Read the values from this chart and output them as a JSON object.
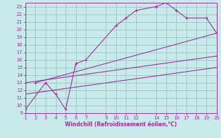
{
  "xlabel": "Windchill (Refroidissement éolien,°C)",
  "bg_color": "#c8eaea",
  "grid_color": "#a0c8c8",
  "line_color": "#993399",
  "xlim": [
    1,
    20
  ],
  "ylim": [
    9,
    23.5
  ],
  "xticks": [
    1,
    2,
    3,
    4,
    5,
    6,
    7,
    9,
    10,
    11,
    12,
    14,
    15,
    16,
    17,
    18,
    19,
    20
  ],
  "yticks": [
    9,
    10,
    11,
    12,
    13,
    14,
    15,
    16,
    17,
    18,
    19,
    20,
    21,
    22,
    23
  ],
  "curve1_x": [
    1,
    3,
    4,
    5,
    6,
    7,
    10,
    11,
    12,
    14,
    15,
    16,
    17,
    19,
    20
  ],
  "curve1_y": [
    9.5,
    13.0,
    11.5,
    9.5,
    15.5,
    16.0,
    20.5,
    21.5,
    22.5,
    23.0,
    23.5,
    22.5,
    21.5,
    21.5,
    19.5
  ],
  "line2_x": [
    2,
    20
  ],
  "line2_y": [
    13.0,
    19.5
  ],
  "line3_x": [
    1,
    20
  ],
  "line3_y": [
    13.0,
    16.5
  ],
  "line4_x": [
    1,
    20
  ],
  "line4_y": [
    11.5,
    15.0
  ]
}
